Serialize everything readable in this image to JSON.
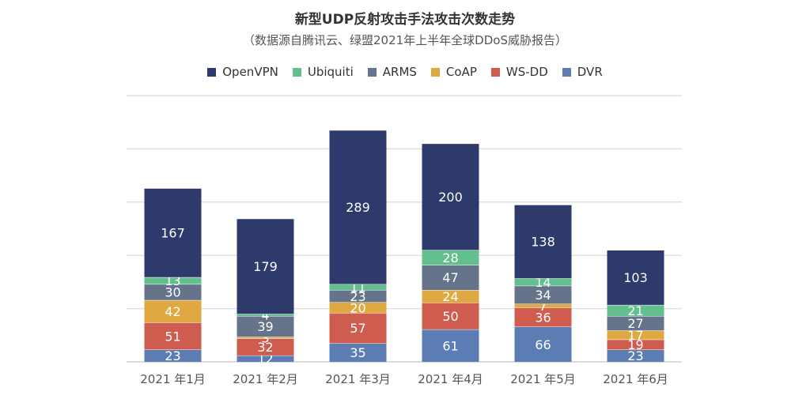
{
  "chart_data": {
    "type": "bar",
    "stacked": true,
    "title": "新型UDP反射攻击手法攻击次数走势",
    "subtitle": "（数据源自腾讯云、绿盟2021年上半年全球DDoS威胁报告）",
    "categories": [
      "2021 年1月",
      "2021 年2月",
      "2021 年3月",
      "2021 年4月",
      "2021 年5月",
      "2021 年6月"
    ],
    "series": [
      {
        "name": "DVR",
        "color": "#5b7db3",
        "values": [
          23,
          12,
          35,
          61,
          66,
          23
        ]
      },
      {
        "name": "WS-DD",
        "color": "#cf5d4f",
        "values": [
          51,
          32,
          57,
          50,
          36,
          19
        ]
      },
      {
        "name": "CoAP",
        "color": "#e0a840",
        "values": [
          42,
          3,
          20,
          24,
          7,
          17
        ]
      },
      {
        "name": "ARMS",
        "color": "#65748a",
        "values": [
          30,
          39,
          23,
          47,
          34,
          27
        ]
      },
      {
        "name": "Ubiquiti",
        "color": "#63bf8d",
        "values": [
          13,
          4,
          11,
          28,
          14,
          21
        ]
      },
      {
        "name": "OpenVPN",
        "color": "#2d3a6b",
        "values": [
          167,
          179,
          289,
          200,
          138,
          103
        ]
      }
    ],
    "legend_order": [
      "OpenVPN",
      "Ubiquiti",
      "ARMS",
      "CoAP",
      "WS-DD",
      "DVR"
    ],
    "legend_position": "top",
    "ylim": [
      0,
      500
    ],
    "grid": true
  }
}
